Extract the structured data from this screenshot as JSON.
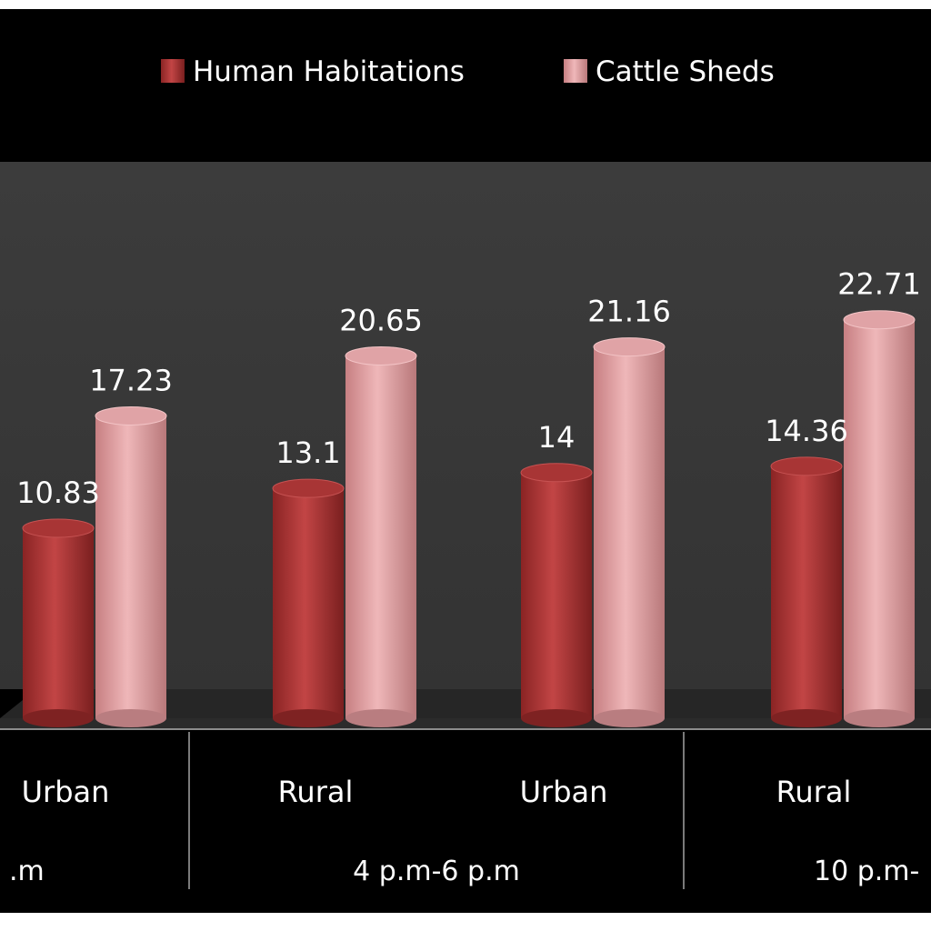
{
  "chart_data": {
    "type": "bar",
    "style": "3d-cylinder",
    "categories": [
      "Urban",
      "Rural",
      "Urban",
      "Rural"
    ],
    "groups": [
      {
        "label": ".m",
        "categories": [
          "Urban"
        ]
      },
      {
        "label": "4 p.m-6 p.m",
        "categories": [
          "Rural",
          "Urban"
        ]
      },
      {
        "label": "10 p.m-",
        "categories": [
          "Rural"
        ]
      }
    ],
    "series": [
      {
        "name": "Human Habitations",
        "color": "#b23a3a",
        "values": [
          10.83,
          13.1,
          14,
          14.36
        ],
        "labels": [
          "10.83",
          "13.1",
          "14",
          "14.36"
        ]
      },
      {
        "name": "Cattle Sheds",
        "color": "#e3a3a5",
        "values": [
          17.23,
          20.65,
          21.16,
          22.71
        ],
        "labels": [
          "17.23",
          "20.65",
          "21.16",
          "22.71"
        ]
      }
    ],
    "legend_position": "top",
    "grid": false
  }
}
